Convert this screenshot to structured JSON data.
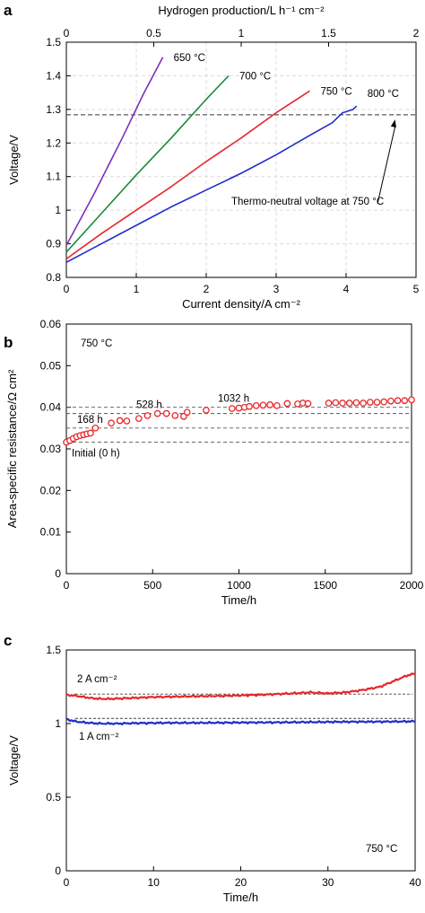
{
  "chart_data": [
    {
      "panel": "a",
      "type": "line",
      "xlabel": "Current density/A cm⁻²",
      "ylabel": "Voltage/V",
      "x2label": "Hydrogen production/L h⁻¹ cm⁻²",
      "xlim": [
        0,
        5
      ],
      "ylim": [
        0.8,
        1.5
      ],
      "x2lim": [
        0,
        2
      ],
      "xticks": [
        "0",
        "1",
        "2",
        "3",
        "4",
        "5"
      ],
      "yticks": [
        "0.8",
        "0.9",
        "1",
        "1.1",
        "1.2",
        "1.3",
        "1.4",
        "1.5"
      ],
      "x2ticks": [
        "0",
        "0.5",
        "1",
        "1.5",
        "2"
      ],
      "grid": true,
      "series": [
        {
          "name": "650 °C",
          "color": "#7b2fbe",
          "x": [
            0,
            0.4,
            0.8,
            1.1,
            1.38
          ],
          "y": [
            0.895,
            1.05,
            1.215,
            1.345,
            1.455
          ]
        },
        {
          "name": "700 °C",
          "color": "#1a8a3a",
          "x": [
            0,
            0.5,
            1.0,
            1.5,
            2.0,
            2.32
          ],
          "y": [
            0.875,
            0.99,
            1.105,
            1.215,
            1.33,
            1.4
          ]
        },
        {
          "name": "750 °C",
          "color": "#e8262a",
          "x": [
            0,
            0.5,
            1.0,
            1.5,
            2.0,
            2.5,
            3.0,
            3.48
          ],
          "y": [
            0.855,
            0.93,
            1.0,
            1.07,
            1.145,
            1.215,
            1.29,
            1.355
          ]
        },
        {
          "name": "800 °C",
          "color": "#1f2ec9",
          "x": [
            0,
            0.5,
            1.0,
            1.5,
            2.0,
            2.5,
            3.0,
            3.5,
            3.8,
            3.95,
            4.1,
            4.15
          ],
          "y": [
            0.845,
            0.9,
            0.955,
            1.01,
            1.06,
            1.11,
            1.165,
            1.225,
            1.26,
            1.29,
            1.3,
            1.31
          ]
        }
      ],
      "reference": {
        "y": 1.284,
        "style": "dashed"
      },
      "annotation": {
        "text": "Thermo-neutral voltage at 750 °C",
        "arrow_from": [
          4.45,
          1.02
        ],
        "arrow_to": [
          4.7,
          1.27
        ]
      }
    },
    {
      "panel": "b",
      "type": "scatter",
      "xlabel": "Time/h",
      "ylabel": "Area-specific resistance/Ω cm²",
      "xlim": [
        0,
        2000
      ],
      "ylim": [
        0,
        0.06
      ],
      "xticks": [
        "0",
        "500",
        "1000",
        "1500",
        "2000"
      ],
      "yticks": [
        "0",
        "0.01",
        "0.02",
        "0.03",
        "0.04",
        "0.05",
        "0.06"
      ],
      "grid": false,
      "condition": "750 °C",
      "marker_color": "#e8262a",
      "x": [
        0,
        20,
        40,
        60,
        80,
        100,
        120,
        140,
        168,
        260,
        310,
        350,
        420,
        470,
        528,
        580,
        630,
        680,
        700,
        810,
        960,
        1000,
        1032,
        1060,
        1100,
        1140,
        1180,
        1220,
        1280,
        1340,
        1370,
        1400,
        1520,
        1560,
        1600,
        1640,
        1680,
        1720,
        1760,
        1800,
        1840,
        1880,
        1920,
        1960,
        2000
      ],
      "y": [
        0.0316,
        0.032,
        0.0325,
        0.0329,
        0.0332,
        0.0334,
        0.0336,
        0.0338,
        0.035,
        0.0362,
        0.0368,
        0.0367,
        0.0373,
        0.038,
        0.0385,
        0.0385,
        0.038,
        0.0378,
        0.0388,
        0.0393,
        0.0397,
        0.0398,
        0.04,
        0.0402,
        0.0404,
        0.0405,
        0.0406,
        0.0404,
        0.0409,
        0.0408,
        0.041,
        0.0409,
        0.041,
        0.0411,
        0.041,
        0.041,
        0.0411,
        0.041,
        0.0412,
        0.0412,
        0.0413,
        0.0415,
        0.0416,
        0.0416,
        0.0418
      ],
      "references": [
        {
          "label": "Initial (0 h)",
          "y": 0.0316
        },
        {
          "label": "168 h",
          "y": 0.035
        },
        {
          "label": "528 h",
          "y": 0.0385
        },
        {
          "label": "1032 h",
          "y": 0.04
        }
      ]
    },
    {
      "panel": "c",
      "type": "line",
      "xlabel": "Time/h",
      "ylabel": "Voltage/V",
      "xlim": [
        0,
        40
      ],
      "ylim": [
        0,
        1.5
      ],
      "xticks": [
        "0",
        "10",
        "20",
        "30",
        "40"
      ],
      "yticks": [
        "0",
        "0.5",
        "1",
        "1.5"
      ],
      "grid": false,
      "condition": "750 °C",
      "series": [
        {
          "name": "2 A cm⁻²",
          "color": "#e8262a",
          "x": [
            0,
            1,
            2,
            3,
            4,
            5,
            6,
            8,
            10,
            14,
            18,
            22,
            26,
            28,
            30,
            32,
            34,
            36,
            37,
            38,
            39,
            40
          ],
          "y": [
            1.195,
            1.19,
            1.18,
            1.172,
            1.168,
            1.168,
            1.17,
            1.175,
            1.18,
            1.185,
            1.188,
            1.195,
            1.205,
            1.212,
            1.205,
            1.212,
            1.228,
            1.25,
            1.275,
            1.3,
            1.325,
            1.34
          ],
          "reference_y": 1.2
        },
        {
          "name": "1 A cm⁻²",
          "color": "#1f2ec9",
          "x": [
            0,
            1,
            2,
            3,
            4,
            6,
            8,
            12,
            16,
            20,
            24,
            28,
            32,
            36,
            40
          ],
          "y": [
            1.03,
            1.015,
            1.008,
            1.003,
            1.0,
            1.0,
            1.003,
            1.005,
            1.005,
            1.007,
            1.008,
            1.01,
            1.012,
            1.013,
            1.015
          ],
          "reference_y": 1.035
        }
      ]
    }
  ],
  "text": {
    "panel_a": "a",
    "panel_b": "b",
    "panel_c": "c"
  }
}
